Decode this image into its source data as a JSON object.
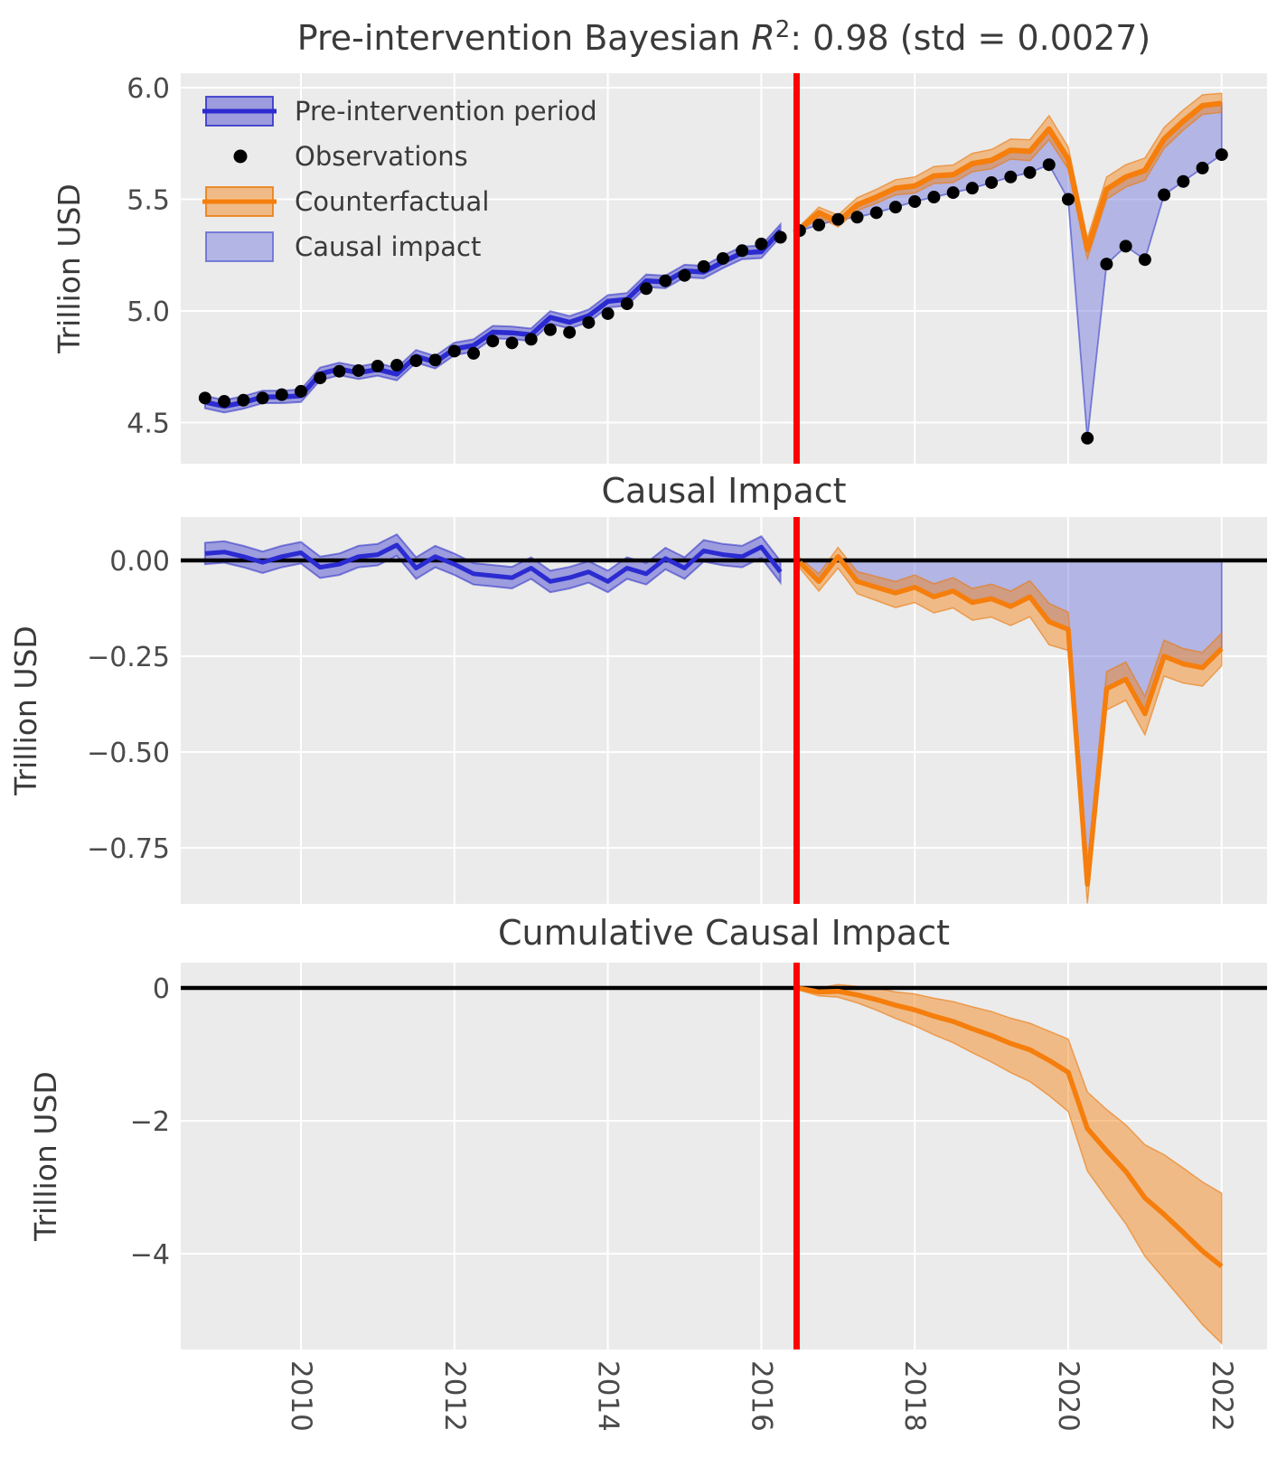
{
  "figure": {
    "kind": "causal-impact-analysis-figure",
    "x_unit": "year"
  },
  "style": {
    "background": "#ffffff",
    "panel_background": "#ebebeb",
    "grid": "#ffffff",
    "title_text": "#3a3a3a",
    "tick_text": "#4a4a4a",
    "blue": "#2b2bd1",
    "blue_fill": "rgba(47,47,205,0.42)",
    "blue_edge": "rgba(43,43,200,0.55)",
    "orange": "#f57e0c",
    "orange_fill": "rgba(245,126,12,0.45)",
    "orange_edge": "rgba(235,120,10,0.6)",
    "causal_fill": "rgba(110,116,219,0.45)",
    "causal_edge": "rgba(98,104,210,0.85)",
    "observation": "#000000",
    "intervention_line": "#ff0000",
    "zero_line": "#000000"
  },
  "chart_data": {
    "type": "line",
    "x_label_unit": "year",
    "intervention_x": 2016.46,
    "xticks": [
      {
        "v": 2010,
        "label": "2010"
      },
      {
        "v": 2012,
        "label": "2012"
      },
      {
        "v": 2014,
        "label": "2014"
      },
      {
        "v": 2016,
        "label": "2016"
      },
      {
        "v": 2018,
        "label": "2018"
      },
      {
        "v": 2020,
        "label": "2020"
      },
      {
        "v": 2022,
        "label": "2022"
      }
    ],
    "panels": [
      {
        "title": "Pre-intervention Bayesian R²: 0.98 (std = 0.0027)",
        "title_parts": {
          "prefix": "Pre-intervention Bayesian ",
          "variable": "R",
          "exponent": "2",
          "suffix": ": 0.98 (std = 0.0027)"
        },
        "ylabel": "Trillion USD",
        "ylim": [
          4.28,
          6.05
        ],
        "yticks": [
          {
            "v": 6.0,
            "label": "6.0"
          },
          {
            "v": 5.5,
            "label": "5.5"
          },
          {
            "v": 5.0,
            "label": "5.0"
          },
          {
            "v": 4.5,
            "label": "4.5"
          }
        ]
      },
      {
        "title": "Causal Impact",
        "ylabel": "Trillion USD",
        "ylim": [
          -0.9,
          0.11
        ],
        "yticks": [
          {
            "v": 0.0,
            "label": "0.00"
          },
          {
            "v": -0.25,
            "label": "−0.25"
          },
          {
            "v": -0.5,
            "label": "−0.50"
          },
          {
            "v": -0.75,
            "label": "−0.75"
          }
        ]
      },
      {
        "title": "Cumulative Causal Impact",
        "ylabel": "Trillion USD",
        "ylim": [
          -5.45,
          0.38
        ],
        "yticks": [
          {
            "v": 0,
            "label": "0"
          },
          {
            "v": -2,
            "label": "−2"
          },
          {
            "v": -4,
            "label": "−4"
          }
        ]
      }
    ],
    "legend": [
      {
        "label": "Pre-intervention period",
        "type": "band-blue"
      },
      {
        "label": "Observations",
        "type": "dot"
      },
      {
        "label": "Counterfactual",
        "type": "band-orange"
      },
      {
        "label": "Causal impact",
        "type": "patch"
      }
    ],
    "x_pre": [
      2008.75,
      2009.0,
      2009.25,
      2009.5,
      2009.75,
      2010.0,
      2010.25,
      2010.5,
      2010.75,
      2011.0,
      2011.25,
      2011.5,
      2011.75,
      2012.0,
      2012.25,
      2012.5,
      2012.75,
      2013.0,
      2013.25,
      2013.5,
      2013.75,
      2014.0,
      2014.25,
      2014.5,
      2014.75,
      2015.0,
      2015.25,
      2015.5,
      2015.75,
      2016.0,
      2016.25
    ],
    "x_post": [
      2016.5,
      2016.75,
      2017.0,
      2017.25,
      2017.5,
      2017.75,
      2018.0,
      2018.25,
      2018.5,
      2018.75,
      2019.0,
      2019.25,
      2019.5,
      2019.75,
      2020.0,
      2020.25,
      2020.5,
      2020.75,
      2021.0,
      2021.25,
      2021.5,
      2021.75,
      2022.0
    ],
    "pre": {
      "observations": [
        4.61,
        4.595,
        4.6,
        4.61,
        4.625,
        4.64,
        4.7,
        4.73,
        4.733,
        4.753,
        4.757,
        4.777,
        4.78,
        4.82,
        4.81,
        4.865,
        4.857,
        4.873,
        4.916,
        4.904,
        4.948,
        4.988,
        5.032,
        5.1,
        5.135,
        5.159,
        5.199,
        5.235,
        5.27,
        5.3,
        5.33
      ],
      "fit": [
        4.592,
        4.573,
        4.59,
        4.615,
        4.615,
        4.62,
        4.718,
        4.74,
        4.723,
        4.738,
        4.717,
        4.797,
        4.77,
        4.83,
        4.845,
        4.905,
        4.902,
        4.893,
        4.971,
        4.949,
        4.978,
        5.043,
        5.052,
        5.135,
        5.13,
        5.179,
        5.174,
        5.22,
        5.26,
        5.265,
        5.36
      ],
      "band_halfwidth": 0.028
    },
    "post": {
      "observations": [
        5.36,
        5.385,
        5.41,
        5.42,
        5.44,
        5.465,
        5.49,
        5.51,
        5.53,
        5.55,
        5.575,
        5.6,
        5.62,
        5.655,
        5.5,
        4.43,
        5.21,
        5.29,
        5.23,
        5.52,
        5.58,
        5.64,
        5.7
      ],
      "counterfactual": [
        5.365,
        5.44,
        5.4,
        5.475,
        5.51,
        5.55,
        5.56,
        5.605,
        5.61,
        5.66,
        5.675,
        5.72,
        5.715,
        5.815,
        5.68,
        5.275,
        5.545,
        5.6,
        5.63,
        5.77,
        5.85,
        5.92,
        5.93
      ],
      "cf_upper": [
        5.38,
        5.465,
        5.43,
        5.507,
        5.545,
        5.588,
        5.6,
        5.647,
        5.654,
        5.706,
        5.723,
        5.77,
        5.767,
        5.875,
        5.735,
        5.325,
        5.6,
        5.655,
        5.685,
        5.822,
        5.9,
        5.968,
        5.975
      ],
      "cf_lower": [
        5.353,
        5.42,
        5.376,
        5.449,
        5.482,
        5.52,
        5.528,
        5.571,
        5.575,
        5.623,
        5.637,
        5.68,
        5.673,
        5.767,
        5.635,
        5.233,
        5.5,
        5.555,
        5.585,
        5.728,
        5.81,
        5.88,
        5.89
      ],
      "cumulative": [
        -0.005,
        -0.06,
        -0.05,
        -0.105,
        -0.175,
        -0.26,
        -0.33,
        -0.425,
        -0.505,
        -0.615,
        -0.715,
        -0.835,
        -0.93,
        -1.09,
        -1.27,
        -2.115,
        -2.45,
        -2.76,
        -3.16,
        -3.41,
        -3.68,
        -3.96,
        -4.19
      ],
      "cum_upper": [
        0.025,
        0.0,
        0.05,
        0.025,
        -0.005,
        -0.06,
        -0.09,
        -0.155,
        -0.205,
        -0.285,
        -0.355,
        -0.455,
        -0.53,
        -0.65,
        -0.77,
        -1.565,
        -1.83,
        -2.06,
        -2.36,
        -2.51,
        -2.71,
        -2.92,
        -3.09
      ],
      "cum_lower": [
        -0.035,
        -0.12,
        -0.14,
        -0.225,
        -0.335,
        -0.46,
        -0.57,
        -0.705,
        -0.825,
        -0.975,
        -1.115,
        -1.275,
        -1.41,
        -1.62,
        -1.86,
        -2.755,
        -3.16,
        -3.55,
        -4.04,
        -4.38,
        -4.72,
        -5.07,
        -5.35
      ]
    }
  }
}
